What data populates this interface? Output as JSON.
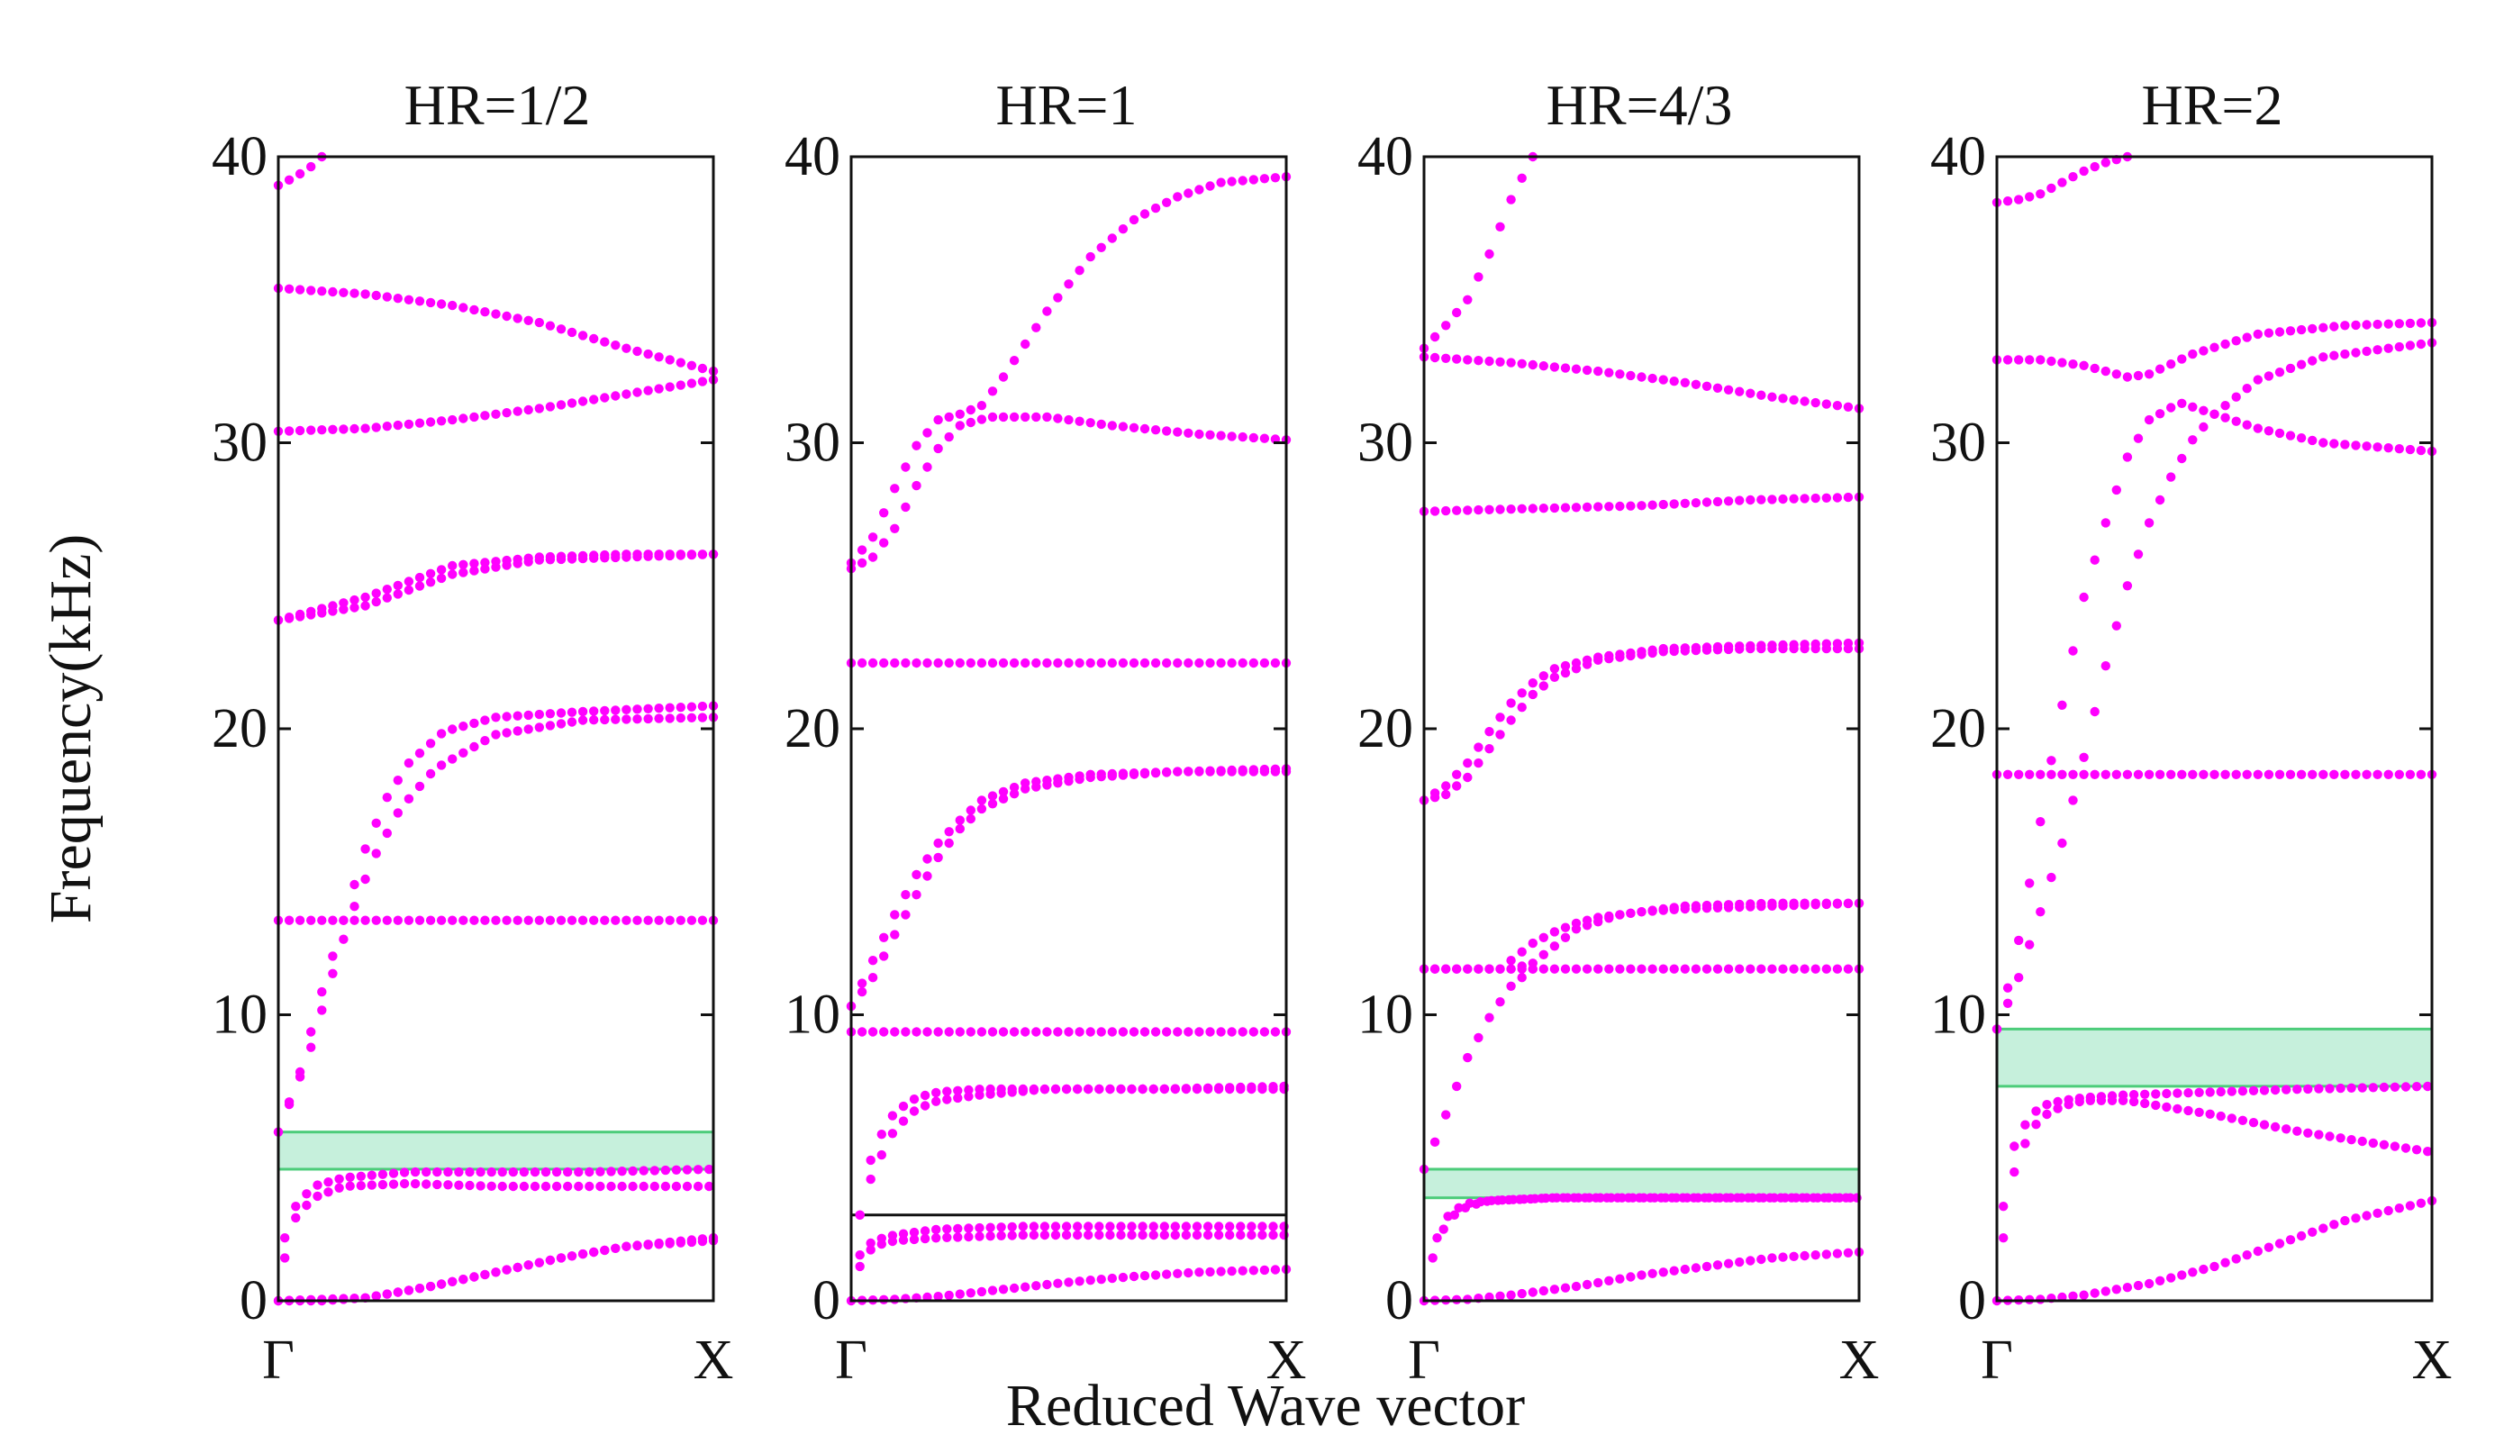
{
  "figure": {
    "xlabel": "Reduced Wave vector",
    "ylabel": "Frequency(kHz)",
    "colors": {
      "points": "#ff00ff",
      "band_gap_fill": "#c6f0dc",
      "band_gap_stroke": "#4ccc7a",
      "axis": "#111111"
    }
  },
  "chart_data": [
    {
      "type": "scatter",
      "title": "HR=1/2",
      "x_ticks": [
        "Γ",
        "X"
      ],
      "xlim": [
        0,
        1
      ],
      "ylim": [
        0,
        40
      ],
      "y_ticks": [
        0,
        10,
        20,
        30,
        40
      ],
      "y_tick_labels": [
        "0",
        "10",
        "20",
        "30",
        "40"
      ],
      "band_gaps": [
        {
          "min": 4.6,
          "max": 5.9
        }
      ],
      "flat_lines": [],
      "bands": [
        {
          "name": "band-1",
          "x": [
            0,
            0.1,
            0.2,
            0.35,
            0.5,
            0.65,
            0.8,
            1
          ],
          "y": [
            0,
            0,
            0.1,
            0.5,
            1.0,
            1.5,
            1.9,
            2.1
          ]
        },
        {
          "name": "band-2",
          "x": [
            0,
            0.1,
            0.2,
            0.35,
            0.5,
            0.65,
            0.8,
            1
          ],
          "y": [
            0,
            0.05,
            0.1,
            0.5,
            1.0,
            1.5,
            1.9,
            2.2
          ]
        },
        {
          "name": "band-3",
          "x": [
            0.015,
            0.04,
            0.08,
            0.15,
            0.3,
            0.5,
            0.7,
            1
          ],
          "y": [
            1.5,
            2.9,
            3.6,
            4.0,
            4.1,
            4.0,
            4.0,
            4.0
          ]
        },
        {
          "name": "band-4",
          "x": [
            0.015,
            0.04,
            0.08,
            0.15,
            0.3,
            0.5,
            0.7,
            1
          ],
          "y": [
            2.2,
            3.3,
            4.0,
            4.3,
            4.5,
            4.5,
            4.5,
            4.6
          ]
        },
        {
          "name": "band-5",
          "x": [
            0,
            0.05,
            0.1,
            0.15,
            0.2,
            0.25,
            0.3,
            0.38,
            0.5,
            0.7,
            1
          ],
          "y": [
            5.9,
            8.0,
            10.8,
            13.3,
            15.8,
            17.6,
            18.8,
            19.9,
            20.4,
            20.6,
            20.8
          ]
        },
        {
          "name": "band-6",
          "x": [
            0,
            0.07,
            0.12,
            0.17,
            0.22,
            0.28,
            0.36,
            0.5,
            0.7,
            1
          ],
          "y": [
            5.9,
            8.6,
            11.2,
            13.6,
            15.5,
            17.2,
            18.6,
            19.8,
            20.3,
            20.4
          ]
        },
        {
          "name": "band-7",
          "x": [
            0,
            0.2,
            0.4,
            0.6,
            0.8,
            1
          ],
          "y": [
            13.3,
            13.3,
            13.3,
            13.3,
            13.3,
            13.3
          ]
        },
        {
          "name": "band-8",
          "x": [
            0,
            0.2,
            0.4,
            0.6,
            0.8,
            1
          ],
          "y": [
            23.8,
            24.3,
            25.4,
            25.9,
            26.0,
            26.1
          ]
        },
        {
          "name": "band-9",
          "x": [
            0,
            0.2,
            0.4,
            0.6,
            0.8,
            1
          ],
          "y": [
            23.8,
            24.6,
            25.7,
            26.0,
            26.1,
            26.1
          ]
        },
        {
          "name": "band-10",
          "x": [
            0,
            0.2,
            0.4,
            0.6,
            0.8,
            1
          ],
          "y": [
            30.4,
            30.5,
            30.8,
            31.2,
            31.7,
            32.2
          ]
        },
        {
          "name": "band-11",
          "x": [
            0,
            0.2,
            0.4,
            0.6,
            0.8,
            1
          ],
          "y": [
            35.4,
            35.2,
            34.8,
            34.2,
            33.3,
            32.5
          ]
        },
        {
          "name": "band-12",
          "x": [
            0,
            0.04,
            0.08,
            0.1
          ],
          "y": [
            39.0,
            39.3,
            39.7,
            40.0
          ]
        }
      ]
    },
    {
      "type": "scatter",
      "title": "HR=1",
      "x_ticks": [
        "Γ",
        "X"
      ],
      "xlim": [
        0,
        1
      ],
      "ylim": [
        0,
        40
      ],
      "y_ticks": [
        0,
        10,
        20,
        30,
        40
      ],
      "y_tick_labels": [
        "0",
        "10",
        "20",
        "30",
        "40"
      ],
      "band_gaps": [],
      "flat_lines": [
        3.0
      ],
      "bands": [
        {
          "name": "band-1",
          "x": [
            0,
            0.1,
            0.2,
            0.35,
            0.5,
            0.65,
            0.8,
            1
          ],
          "y": [
            0,
            0.05,
            0.15,
            0.4,
            0.65,
            0.85,
            1.0,
            1.1
          ]
        },
        {
          "name": "band-2",
          "x": [
            0.02,
            0.05,
            0.1,
            0.2,
            0.4,
            0.6,
            0.8,
            1
          ],
          "y": [
            1.2,
            1.9,
            2.1,
            2.2,
            2.3,
            2.3,
            2.3,
            2.3
          ]
        },
        {
          "name": "band-3",
          "x": [
            0.02,
            0.05,
            0.1,
            0.2,
            0.4,
            0.6,
            0.8,
            1
          ],
          "y": [
            1.6,
            2.1,
            2.3,
            2.5,
            2.6,
            2.6,
            2.6,
            2.6
          ]
        },
        {
          "name": "band-4",
          "x": [
            0.02,
            0.05,
            0.1,
            0.15,
            0.2,
            0.3,
            0.45,
            0.7,
            1
          ],
          "y": [
            3.0,
            4.5,
            6.0,
            6.7,
            7.0,
            7.2,
            7.4,
            7.4,
            7.4
          ]
        },
        {
          "name": "band-5",
          "x": [
            0.02,
            0.05,
            0.1,
            0.15,
            0.2,
            0.3,
            0.45,
            0.7,
            1
          ],
          "y": [
            3.0,
            5.3,
            6.6,
            7.1,
            7.3,
            7.4,
            7.4,
            7.4,
            7.5
          ]
        },
        {
          "name": "band-6",
          "x": [
            0,
            0.25,
            0.5,
            0.75,
            1
          ],
          "y": [
            9.4,
            9.4,
            9.4,
            9.4,
            9.4
          ]
        },
        {
          "name": "band-7",
          "x": [
            0,
            0.05,
            0.1,
            0.15,
            0.2,
            0.25,
            0.3,
            0.4,
            0.55,
            0.75,
            1
          ],
          "y": [
            10.3,
            11.3,
            12.8,
            14.2,
            15.5,
            16.5,
            17.2,
            17.9,
            18.3,
            18.5,
            18.6
          ]
        },
        {
          "name": "band-8",
          "x": [
            0,
            0.05,
            0.1,
            0.15,
            0.2,
            0.25,
            0.3,
            0.4,
            0.55,
            0.75,
            1
          ],
          "y": [
            10.3,
            11.9,
            13.5,
            14.9,
            16.0,
            16.8,
            17.5,
            18.1,
            18.4,
            18.5,
            18.5
          ]
        },
        {
          "name": "band-9",
          "x": [
            0,
            0.25,
            0.5,
            0.75,
            1
          ],
          "y": [
            22.3,
            22.3,
            22.3,
            22.3,
            22.3
          ]
        },
        {
          "name": "band-10",
          "x": [
            0,
            0.05,
            0.1,
            0.15,
            0.2,
            0.25,
            0.32,
            0.45,
            0.6,
            0.8,
            1
          ],
          "y": [
            25.6,
            26.0,
            27.0,
            28.5,
            29.8,
            30.6,
            30.9,
            30.9,
            30.6,
            30.3,
            30.1
          ]
        },
        {
          "name": "band-11",
          "x": [
            0,
            0.05,
            0.1,
            0.15,
            0.2,
            0.25,
            0.3,
            0.35,
            0.45,
            0.55,
            0.65,
            0.75,
            0.85,
            1
          ],
          "y": [
            25.8,
            26.7,
            28.4,
            29.9,
            30.8,
            31.0,
            31.3,
            32.3,
            34.6,
            36.5,
            37.8,
            38.6,
            39.1,
            39.3
          ]
        }
      ]
    },
    {
      "type": "scatter",
      "title": "HR=4/3",
      "x_ticks": [
        "Γ",
        "X"
      ],
      "xlim": [
        0,
        1
      ],
      "ylim": [
        0,
        40
      ],
      "y_ticks": [
        0,
        10,
        20,
        30,
        40
      ],
      "y_tick_labels": [
        "0",
        "10",
        "20",
        "30",
        "40"
      ],
      "band_gaps": [
        {
          "min": 3.6,
          "max": 4.6
        }
      ],
      "flat_lines": [],
      "bands": [
        {
          "name": "band-1",
          "x": [
            0,
            0.1,
            0.2,
            0.35,
            0.5,
            0.65,
            0.8,
            1
          ],
          "y": [
            0,
            0.05,
            0.2,
            0.5,
            0.9,
            1.2,
            1.5,
            1.7
          ]
        },
        {
          "name": "band-2",
          "x": [
            0.02,
            0.04,
            0.07,
            0.1,
            0.15,
            0.3,
            0.5,
            1
          ],
          "y": [
            1.5,
            2.4,
            3.0,
            3.3,
            3.5,
            3.6,
            3.6,
            3.6
          ]
        },
        {
          "name": "band-3",
          "x": [
            0.03,
            0.06,
            0.1,
            0.15,
            0.3,
            0.5,
            1
          ],
          "y": [
            2.2,
            3.1,
            3.4,
            3.5,
            3.6,
            3.6,
            3.6
          ]
        },
        {
          "name": "band-4",
          "x": [
            0,
            0.05,
            0.1,
            0.15,
            0.2,
            0.25
          ],
          "y": [
            4.6,
            6.5,
            8.5,
            9.9,
            11.0,
            11.6
          ]
        },
        {
          "name": "band-5",
          "x": [
            0,
            0.25,
            0.5,
            0.75,
            1
          ],
          "y": [
            11.6,
            11.6,
            11.6,
            11.6,
            11.6
          ]
        },
        {
          "name": "band-6",
          "x": [
            0,
            0.1,
            0.2,
            0.25,
            0.3,
            0.35,
            0.45,
            0.6,
            0.8,
            1
          ],
          "y": [
            11.6,
            11.6,
            11.6,
            11.8,
            12.4,
            13.0,
            13.5,
            13.8,
            13.9,
            13.9
          ]
        },
        {
          "name": "band-7",
          "x": [
            0.2,
            0.25,
            0.3,
            0.35,
            0.4,
            0.5,
            0.6,
            0.8,
            1
          ],
          "y": [
            11.9,
            12.5,
            12.9,
            13.2,
            13.4,
            13.6,
            13.7,
            13.8,
            13.9
          ]
        },
        {
          "name": "band-8",
          "x": [
            0,
            0.05,
            0.1,
            0.15,
            0.2,
            0.25,
            0.3,
            0.4,
            0.55,
            0.75,
            1
          ],
          "y": [
            17.5,
            17.7,
            18.3,
            19.3,
            20.3,
            21.2,
            21.8,
            22.4,
            22.7,
            22.8,
            22.8
          ]
        },
        {
          "name": "band-9",
          "x": [
            0,
            0.05,
            0.1,
            0.15,
            0.2,
            0.25,
            0.3,
            0.4,
            0.55,
            0.75,
            1
          ],
          "y": [
            17.5,
            18.0,
            18.8,
            19.9,
            20.9,
            21.6,
            22.1,
            22.5,
            22.8,
            22.9,
            23.0
          ]
        },
        {
          "name": "band-10",
          "x": [
            0,
            0.25,
            0.5,
            0.75,
            1
          ],
          "y": [
            27.6,
            27.7,
            27.8,
            28.0,
            28.1
          ]
        },
        {
          "name": "band-11",
          "x": [
            0,
            0.2,
            0.4,
            0.6,
            0.8,
            1
          ],
          "y": [
            33.0,
            32.8,
            32.5,
            32.1,
            31.6,
            31.2
          ]
        },
        {
          "name": "band-12",
          "x": [
            0,
            0.05,
            0.1,
            0.15,
            0.2,
            0.25
          ],
          "y": [
            33.3,
            34.1,
            35.0,
            36.6,
            38.5,
            40.0
          ]
        }
      ]
    },
    {
      "type": "scatter",
      "title": "HR=2",
      "x_ticks": [
        "Γ",
        "X"
      ],
      "xlim": [
        0,
        1
      ],
      "ylim": [
        0,
        40
      ],
      "y_ticks": [
        0,
        10,
        20,
        30,
        40
      ],
      "y_tick_labels": [
        "0",
        "10",
        "20",
        "30",
        "40"
      ],
      "band_gaps": [
        {
          "min": 7.5,
          "max": 9.5
        }
      ],
      "flat_lines": [],
      "bands": [
        {
          "name": "band-1",
          "x": [
            0,
            0.1,
            0.2,
            0.35,
            0.5,
            0.65,
            0.8,
            1
          ],
          "y": [
            0,
            0.05,
            0.2,
            0.6,
            1.2,
            2.0,
            2.8,
            3.5
          ]
        },
        {
          "name": "band-2",
          "x": [
            0.015,
            0.04,
            0.07,
            0.1,
            0.15,
            0.2,
            0.3,
            0.5,
            0.7,
            1
          ],
          "y": [
            2.2,
            4.5,
            5.7,
            6.4,
            6.8,
            7.0,
            7.0,
            6.5,
            5.9,
            5.2
          ]
        },
        {
          "name": "band-3",
          "x": [
            0.015,
            0.04,
            0.07,
            0.1,
            0.15,
            0.2,
            0.3,
            0.5,
            0.7,
            1
          ],
          "y": [
            3.3,
            5.4,
            6.3,
            6.8,
            7.0,
            7.1,
            7.2,
            7.3,
            7.4,
            7.5
          ]
        },
        {
          "name": "band-4",
          "x": [
            0,
            0.04,
            0.08,
            0.12,
            0.16,
            0.2,
            0.25,
            0.3,
            0.35,
            0.42,
            0.5,
            0.6,
            0.75,
            1
          ],
          "y": [
            9.5,
            11.8,
            15.0,
            18.5,
            21.6,
            24.6,
            27.2,
            29.5,
            30.8,
            31.4,
            31.0,
            30.5,
            30.0,
            29.7
          ]
        },
        {
          "name": "band-5",
          "x": [
            0,
            0.05,
            0.1,
            0.15,
            0.2,
            0.25,
            0.3,
            0.35,
            0.4,
            0.45,
            0.5,
            0.6,
            0.75,
            1
          ],
          "y": [
            9.5,
            11.3,
            13.6,
            16.0,
            19.0,
            22.2,
            25.0,
            27.2,
            28.8,
            30.1,
            31.0,
            32.2,
            33.0,
            33.5
          ]
        },
        {
          "name": "band-6",
          "x": [
            0,
            0.2,
            0.4,
            0.6,
            0.8,
            1
          ],
          "y": [
            18.4,
            18.4,
            18.4,
            18.4,
            18.4,
            18.4
          ]
        },
        {
          "name": "band-7",
          "x": [
            0,
            0.1,
            0.2,
            0.3,
            0.35,
            0.45,
            0.6,
            0.8,
            1
          ],
          "y": [
            32.9,
            32.9,
            32.7,
            32.3,
            32.4,
            33.1,
            33.8,
            34.1,
            34.2
          ]
        },
        {
          "name": "band-8",
          "x": [
            0,
            0.05,
            0.1,
            0.15,
            0.2,
            0.25,
            0.3
          ],
          "y": [
            38.4,
            38.5,
            38.7,
            39.1,
            39.5,
            39.8,
            40.0
          ]
        }
      ]
    }
  ]
}
